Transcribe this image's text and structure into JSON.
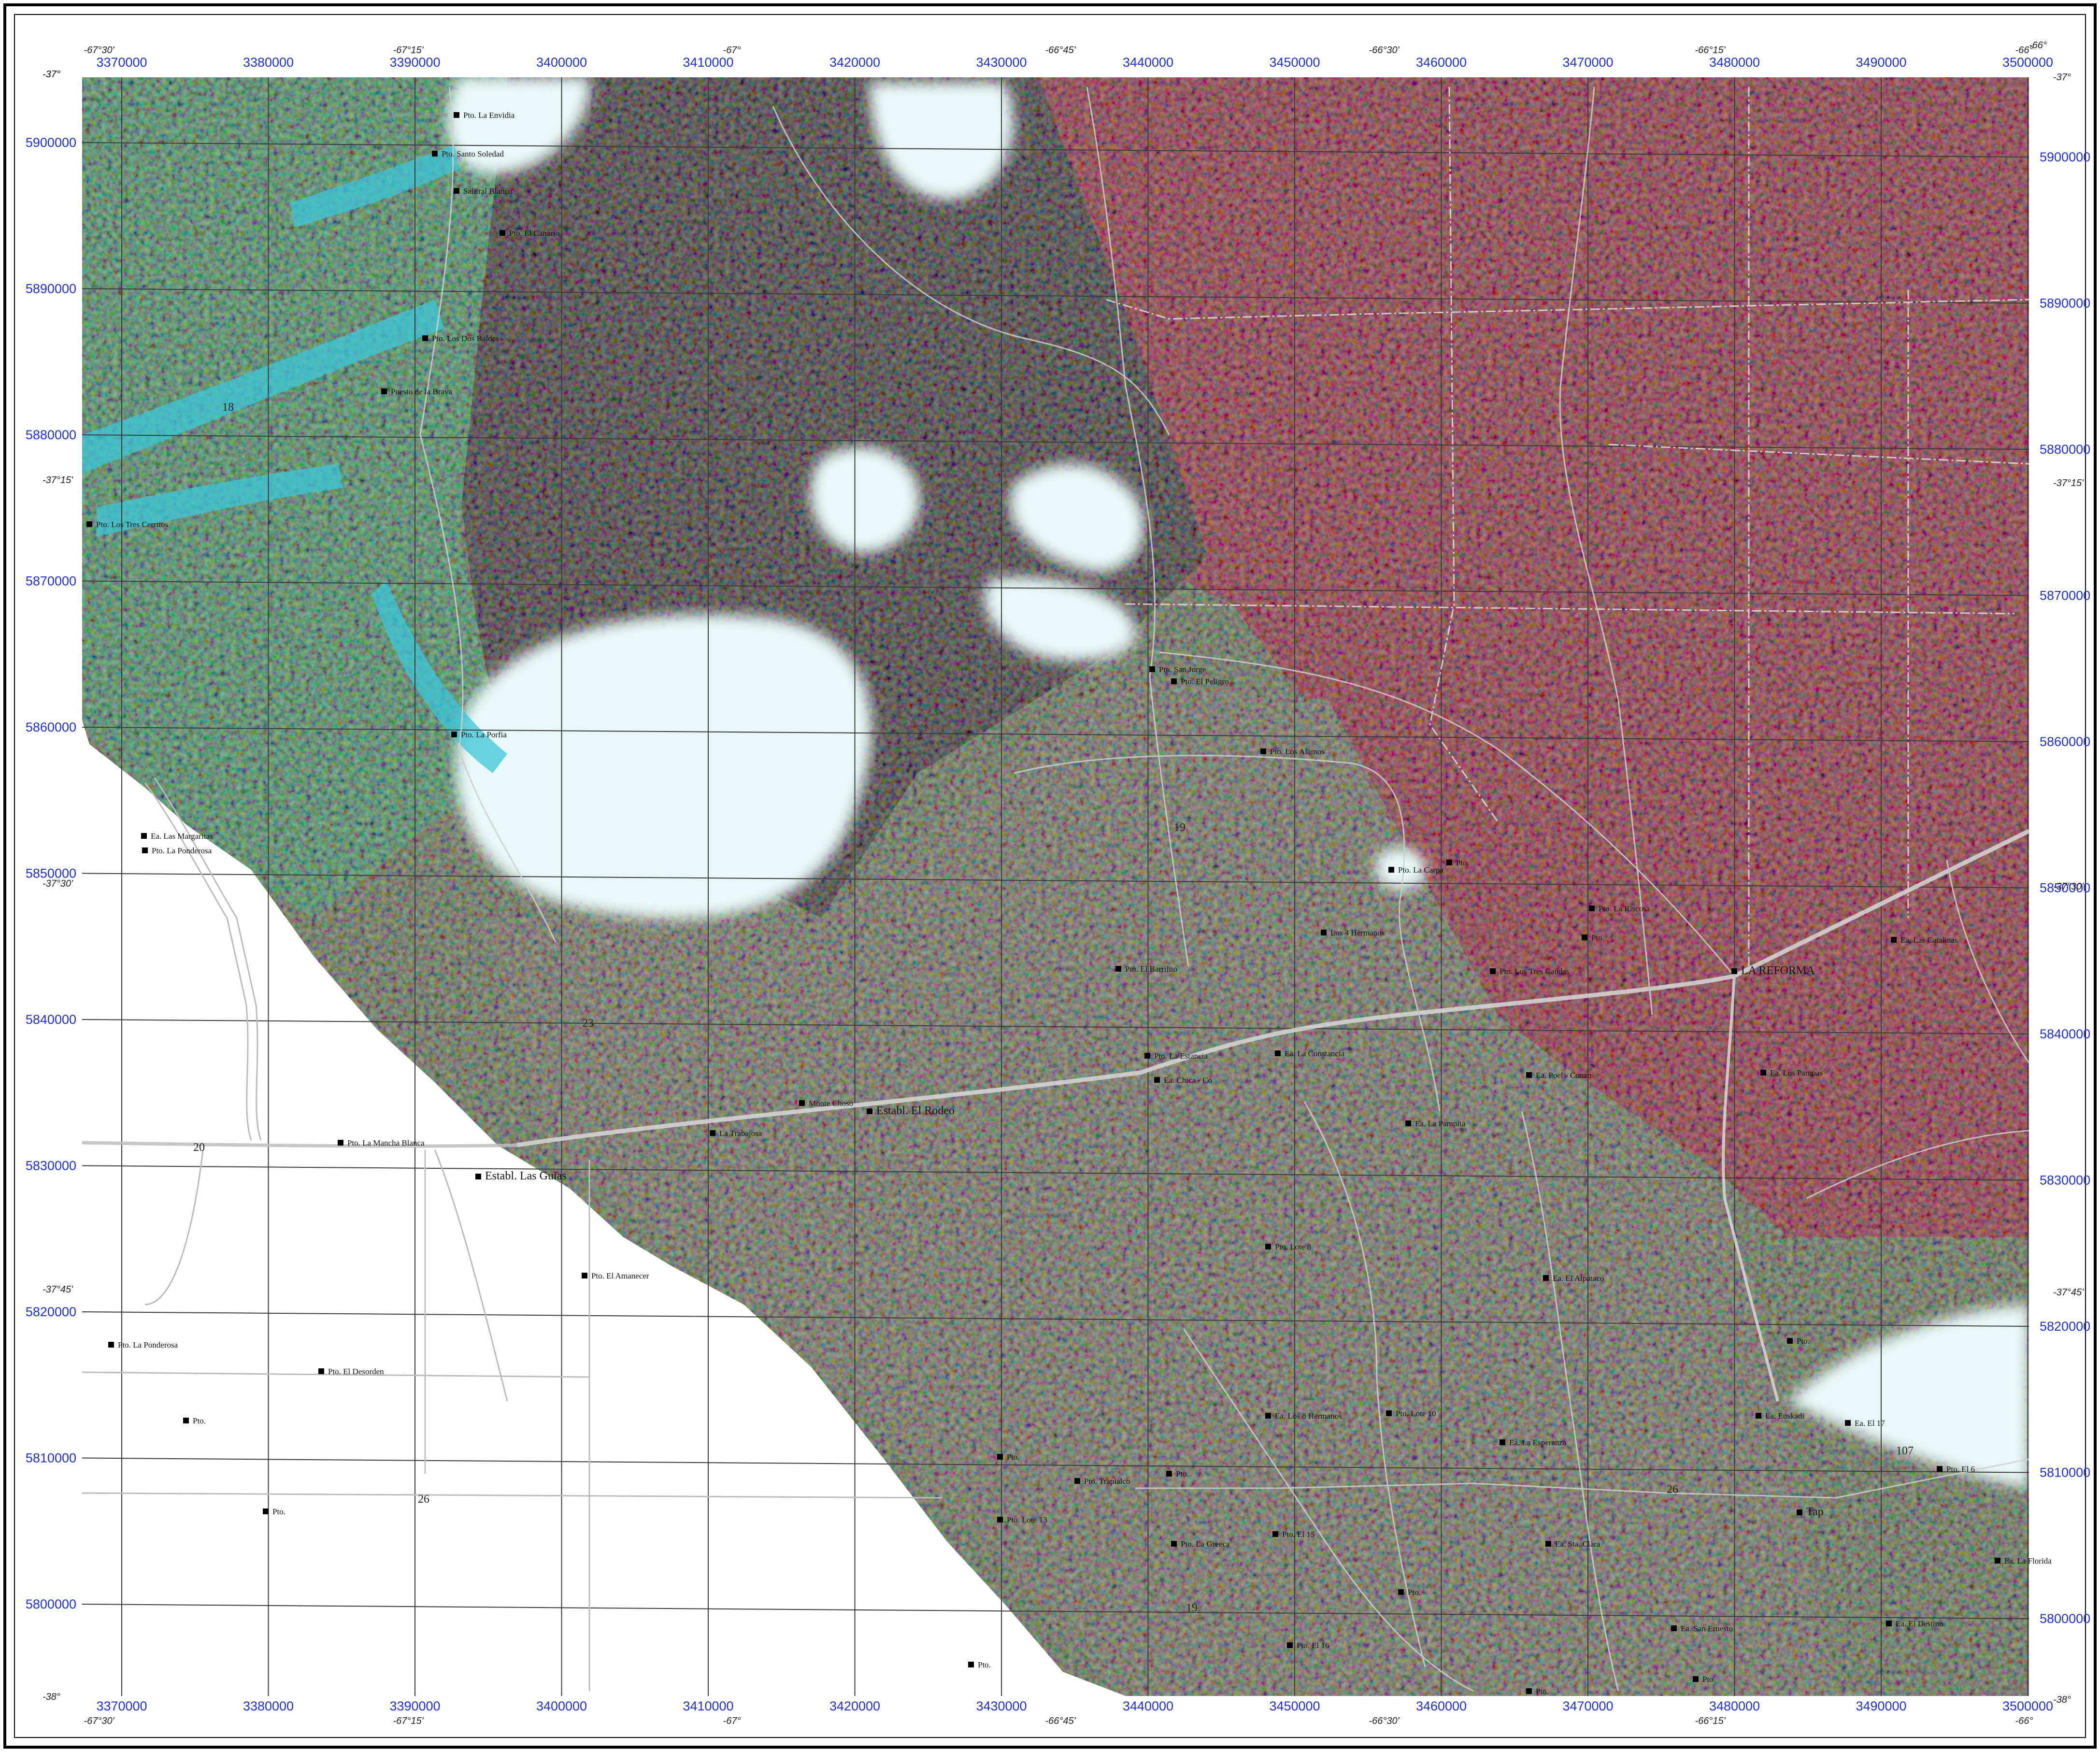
{
  "map": {
    "frame_corners": [
      "-37°",
      "-66°"
    ],
    "grid": {
      "eastings": [
        "3370000",
        "3380000",
        "3390000",
        "3400000",
        "3410000",
        "3420000",
        "3430000",
        "3440000",
        "3450000",
        "3460000",
        "3470000",
        "3480000",
        "3490000",
        "3500000"
      ],
      "northings": [
        "5900000",
        "5890000",
        "5880000",
        "5870000",
        "5860000",
        "5850000",
        "5840000",
        "5830000",
        "5820000",
        "5810000",
        "5800000"
      ],
      "longitudes_top": [
        "-67°30'",
        "-67°15'",
        "-67°",
        "-66°45'",
        "-66°30'",
        "-66°15'",
        "-66°"
      ],
      "longitudes_bottom": [
        "-67°30'",
        "-67°15'",
        "-67°",
        "-66°45'",
        "-66°30'",
        "-66°15'",
        "-66°"
      ],
      "latitudes": [
        "-37°",
        "-37°15'",
        "-37°30'",
        "-37°45'",
        "-38°"
      ]
    },
    "colors": {
      "frame": "#000000",
      "grid": "#3a3a3a",
      "utm_labels": "#1f2fd0",
      "imagery_red_zone": "#8c0f1c",
      "imagery_dark_zone": "#1a1414",
      "imagery_green_zone": "#2e7a45",
      "imagery_mixed_zone": "#5a5a4a",
      "cloud": "#e8f8f8",
      "cyan": "#39c6d6",
      "road": "#cfcfcf",
      "highway": "#d8d8d8"
    },
    "road_numbers": [
      "18",
      "19",
      "23",
      "20",
      "26",
      "19",
      "107",
      "26"
    ],
    "places": [
      {
        "text": "Pto. La Envidia"
      },
      {
        "text": "Pto. Santo Soledad"
      },
      {
        "text": "Salitral Blanco"
      },
      {
        "text": "Pto. El Canario"
      },
      {
        "text": "Pto. Los Dos Baldes"
      },
      {
        "text": "Puesto de la Brava"
      },
      {
        "text": "Pto. Los Tres Cerritos"
      },
      {
        "text": "Pto. La Porfia"
      },
      {
        "text": "Ea. Las Margaritas"
      },
      {
        "text": "Pto. La Ponderosa"
      },
      {
        "text": "Pto. La Mancha Blanca"
      },
      {
        "text": "Establ. Las Guias"
      },
      {
        "text": "Pto. El Amanecer"
      },
      {
        "text": "Pto. La Ponderosa"
      },
      {
        "text": "Pto. El Desorden"
      },
      {
        "text": "Pto."
      },
      {
        "text": "Pto."
      },
      {
        "text": "Monte Choso"
      },
      {
        "text": "La Trabajosa"
      },
      {
        "text": "Establ. El Rodeo"
      },
      {
        "text": "Pto. La Estancia"
      },
      {
        "text": "Ea. Chica - Co"
      },
      {
        "text": "Pto. El Barrilito"
      },
      {
        "text": "Pto. San Jorge"
      },
      {
        "text": "Pto. El Peligro"
      },
      {
        "text": "Pto. Los Alamos"
      },
      {
        "text": "Pto. La Carpa"
      },
      {
        "text": "Los 4 Hermanos"
      },
      {
        "text": "Pto. Los Tres Caudas"
      },
      {
        "text": "LA REFORMA"
      },
      {
        "text": "Ea. La Constancia"
      },
      {
        "text": "Ea. Poel - Conan"
      },
      {
        "text": "Ea. La Pampita"
      },
      {
        "text": "Pto. Lote 8"
      },
      {
        "text": "Ea. El Alpataco"
      },
      {
        "text": "Ea. Los 8 Hermanos"
      },
      {
        "text": "Pto. Lote 10"
      },
      {
        "text": "Ea. La Esperanza"
      },
      {
        "text": "Pto."
      },
      {
        "text": "Pto. Trapialco"
      },
      {
        "text": "Pto. Lote 13"
      },
      {
        "text": "Pto."
      },
      {
        "text": "Pto. La Greeca"
      },
      {
        "text": "Pto. El 15"
      },
      {
        "text": "Ea. Sta. Clara"
      },
      {
        "text": "Pto."
      },
      {
        "text": "Pto. El 16"
      },
      {
        "text": "Ea. San Ernesto"
      },
      {
        "text": "Pto."
      },
      {
        "text": "Pto."
      },
      {
        "text": "Pto."
      },
      {
        "text": "Tap"
      },
      {
        "text": "Ea. Euskadi"
      },
      {
        "text": "Ea. El 17"
      },
      {
        "text": "Pto. El 6"
      },
      {
        "text": "Ea. La Florida"
      },
      {
        "text": "Ea. El Destino"
      },
      {
        "text": "Pto."
      },
      {
        "text": "Pto."
      },
      {
        "text": "Ea. Las Catalinas"
      },
      {
        "text": "Ea. Los Pampas"
      },
      {
        "text": "Pto. La Riscosa"
      },
      {
        "text": "Pto."
      }
    ]
  }
}
